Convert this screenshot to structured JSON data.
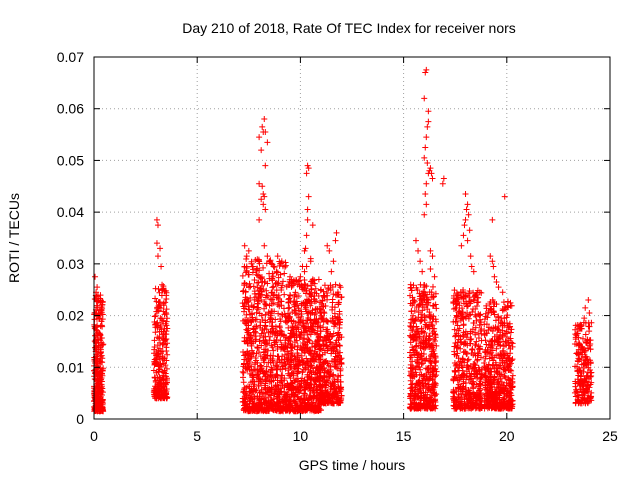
{
  "chart_data": {
    "type": "scatter",
    "title": "Day 210 of 2018, Rate Of TEC Index for receiver nors",
    "xlabel": "GPS time / hours",
    "ylabel": "ROTI / TECUs",
    "xlim": [
      0,
      25
    ],
    "ylim": [
      0,
      0.07
    ],
    "x_ticks": [
      0,
      5,
      10,
      15,
      20,
      25
    ],
    "y_ticks": [
      0,
      0.01,
      0.02,
      0.03,
      0.04,
      0.05,
      0.06,
      0.07
    ],
    "grid": true,
    "marker": "+",
    "marker_color": "#ff0000",
    "clusters": [
      {
        "x_range": [
          0.0,
          0.45
        ],
        "y_range": [
          0.0015,
          0.024
        ],
        "count": 320
      },
      {
        "x_range": [
          2.9,
          3.55
        ],
        "y_range": [
          0.004,
          0.026
        ],
        "count": 260
      },
      {
        "x_range": [
          7.2,
          9.3
        ],
        "y_range": [
          0.0015,
          0.031
        ],
        "count": 800
      },
      {
        "x_range": [
          9.3,
          11.0
        ],
        "y_range": [
          0.0015,
          0.027
        ],
        "count": 700
      },
      {
        "x_range": [
          10.9,
          12.0
        ],
        "y_range": [
          0.003,
          0.026
        ],
        "count": 380
      },
      {
        "x_range": [
          15.3,
          16.6
        ],
        "y_range": [
          0.002,
          0.026
        ],
        "count": 500
      },
      {
        "x_range": [
          17.4,
          18.8
        ],
        "y_range": [
          0.002,
          0.025
        ],
        "count": 460
      },
      {
        "x_range": [
          18.9,
          20.3
        ],
        "y_range": [
          0.002,
          0.023
        ],
        "count": 520
      },
      {
        "x_range": [
          23.3,
          24.1
        ],
        "y_range": [
          0.003,
          0.019
        ],
        "count": 200
      }
    ],
    "outliers": [
      [
        0.05,
        0.0275
      ],
      [
        0.15,
        0.0255
      ],
      [
        0.1,
        0.0245
      ],
      [
        0.3,
        0.0225
      ],
      [
        3.05,
        0.0385
      ],
      [
        3.1,
        0.0375
      ],
      [
        3.05,
        0.034
      ],
      [
        3.2,
        0.033
      ],
      [
        3.1,
        0.0315
      ],
      [
        3.25,
        0.0295
      ],
      [
        7.3,
        0.0335
      ],
      [
        7.5,
        0.0325
      ],
      [
        7.7,
        0.0295
      ],
      [
        7.4,
        0.0315
      ],
      [
        8.0,
        0.0385
      ],
      [
        8.1,
        0.0425
      ],
      [
        8.0,
        0.0455
      ],
      [
        8.15,
        0.045
      ],
      [
        8.2,
        0.0415
      ],
      [
        8.25,
        0.043
      ],
      [
        8.3,
        0.0405
      ],
      [
        8.2,
        0.0435
      ],
      [
        8.3,
        0.049
      ],
      [
        8.1,
        0.052
      ],
      [
        8.0,
        0.0545
      ],
      [
        8.2,
        0.0555
      ],
      [
        8.15,
        0.0565
      ],
      [
        8.25,
        0.058
      ],
      [
        8.3,
        0.0555
      ],
      [
        8.4,
        0.0535
      ],
      [
        8.25,
        0.0335
      ],
      [
        8.4,
        0.0315
      ],
      [
        8.5,
        0.0305
      ],
      [
        8.7,
        0.0295
      ],
      [
        8.9,
        0.0315
      ],
      [
        9.1,
        0.0305
      ],
      [
        9.5,
        0.0275
      ],
      [
        9.7,
        0.0265
      ],
      [
        10.1,
        0.0295
      ],
      [
        10.0,
        0.0275
      ],
      [
        10.2,
        0.0285
      ],
      [
        10.3,
        0.0295
      ],
      [
        10.25,
        0.033
      ],
      [
        10.3,
        0.0355
      ],
      [
        10.35,
        0.0385
      ],
      [
        10.35,
        0.0405
      ],
      [
        10.4,
        0.043
      ],
      [
        10.3,
        0.0475
      ],
      [
        10.35,
        0.049
      ],
      [
        10.4,
        0.0485
      ],
      [
        10.2,
        0.0325
      ],
      [
        10.5,
        0.0305
      ],
      [
        10.6,
        0.0375
      ],
      [
        10.5,
        0.031
      ],
      [
        10.6,
        0.027
      ],
      [
        11.3,
        0.0335
      ],
      [
        11.4,
        0.0325
      ],
      [
        11.5,
        0.0285
      ],
      [
        11.6,
        0.0305
      ],
      [
        11.7,
        0.0345
      ],
      [
        11.75,
        0.036
      ],
      [
        15.6,
        0.0345
      ],
      [
        15.7,
        0.0325
      ],
      [
        15.8,
        0.0305
      ],
      [
        15.9,
        0.0285
      ],
      [
        16.0,
        0.0395
      ],
      [
        16.1,
        0.0415
      ],
      [
        16.05,
        0.0435
      ],
      [
        16.1,
        0.0455
      ],
      [
        16.2,
        0.0475
      ],
      [
        16.25,
        0.048
      ],
      [
        16.3,
        0.0485
      ],
      [
        16.35,
        0.0475
      ],
      [
        16.4,
        0.0465
      ],
      [
        16.0,
        0.0505
      ],
      [
        16.05,
        0.0525
      ],
      [
        16.1,
        0.0545
      ],
      [
        16.15,
        0.0565
      ],
      [
        16.2,
        0.0575
      ],
      [
        16.0,
        0.062
      ],
      [
        16.05,
        0.067
      ],
      [
        16.1,
        0.0675
      ],
      [
        16.2,
        0.0595
      ],
      [
        16.15,
        0.0495
      ],
      [
        16.3,
        0.0325
      ],
      [
        16.4,
        0.0315
      ],
      [
        16.3,
        0.029
      ],
      [
        16.5,
        0.0275
      ],
      [
        16.9,
        0.0455
      ],
      [
        16.95,
        0.0465
      ],
      [
        17.8,
        0.0335
      ],
      [
        17.9,
        0.0355
      ],
      [
        17.95,
        0.0375
      ],
      [
        18.0,
        0.0385
      ],
      [
        18.05,
        0.0405
      ],
      [
        18.0,
        0.0435
      ],
      [
        18.1,
        0.0415
      ],
      [
        18.15,
        0.0395
      ],
      [
        18.2,
        0.0365
      ],
      [
        18.1,
        0.0345
      ],
      [
        18.25,
        0.0315
      ],
      [
        18.3,
        0.0295
      ],
      [
        18.4,
        0.0285
      ],
      [
        19.2,
        0.0315
      ],
      [
        19.3,
        0.0305
      ],
      [
        19.35,
        0.0295
      ],
      [
        19.4,
        0.0275
      ],
      [
        19.5,
        0.0265
      ],
      [
        19.6,
        0.0255
      ],
      [
        19.3,
        0.0385
      ],
      [
        19.9,
        0.043
      ],
      [
        19.8,
        0.0245
      ],
      [
        23.4,
        0.0165
      ],
      [
        23.6,
        0.0175
      ],
      [
        23.75,
        0.0195
      ],
      [
        23.8,
        0.0215
      ],
      [
        23.95,
        0.023
      ],
      [
        24.0,
        0.0205
      ]
    ]
  }
}
